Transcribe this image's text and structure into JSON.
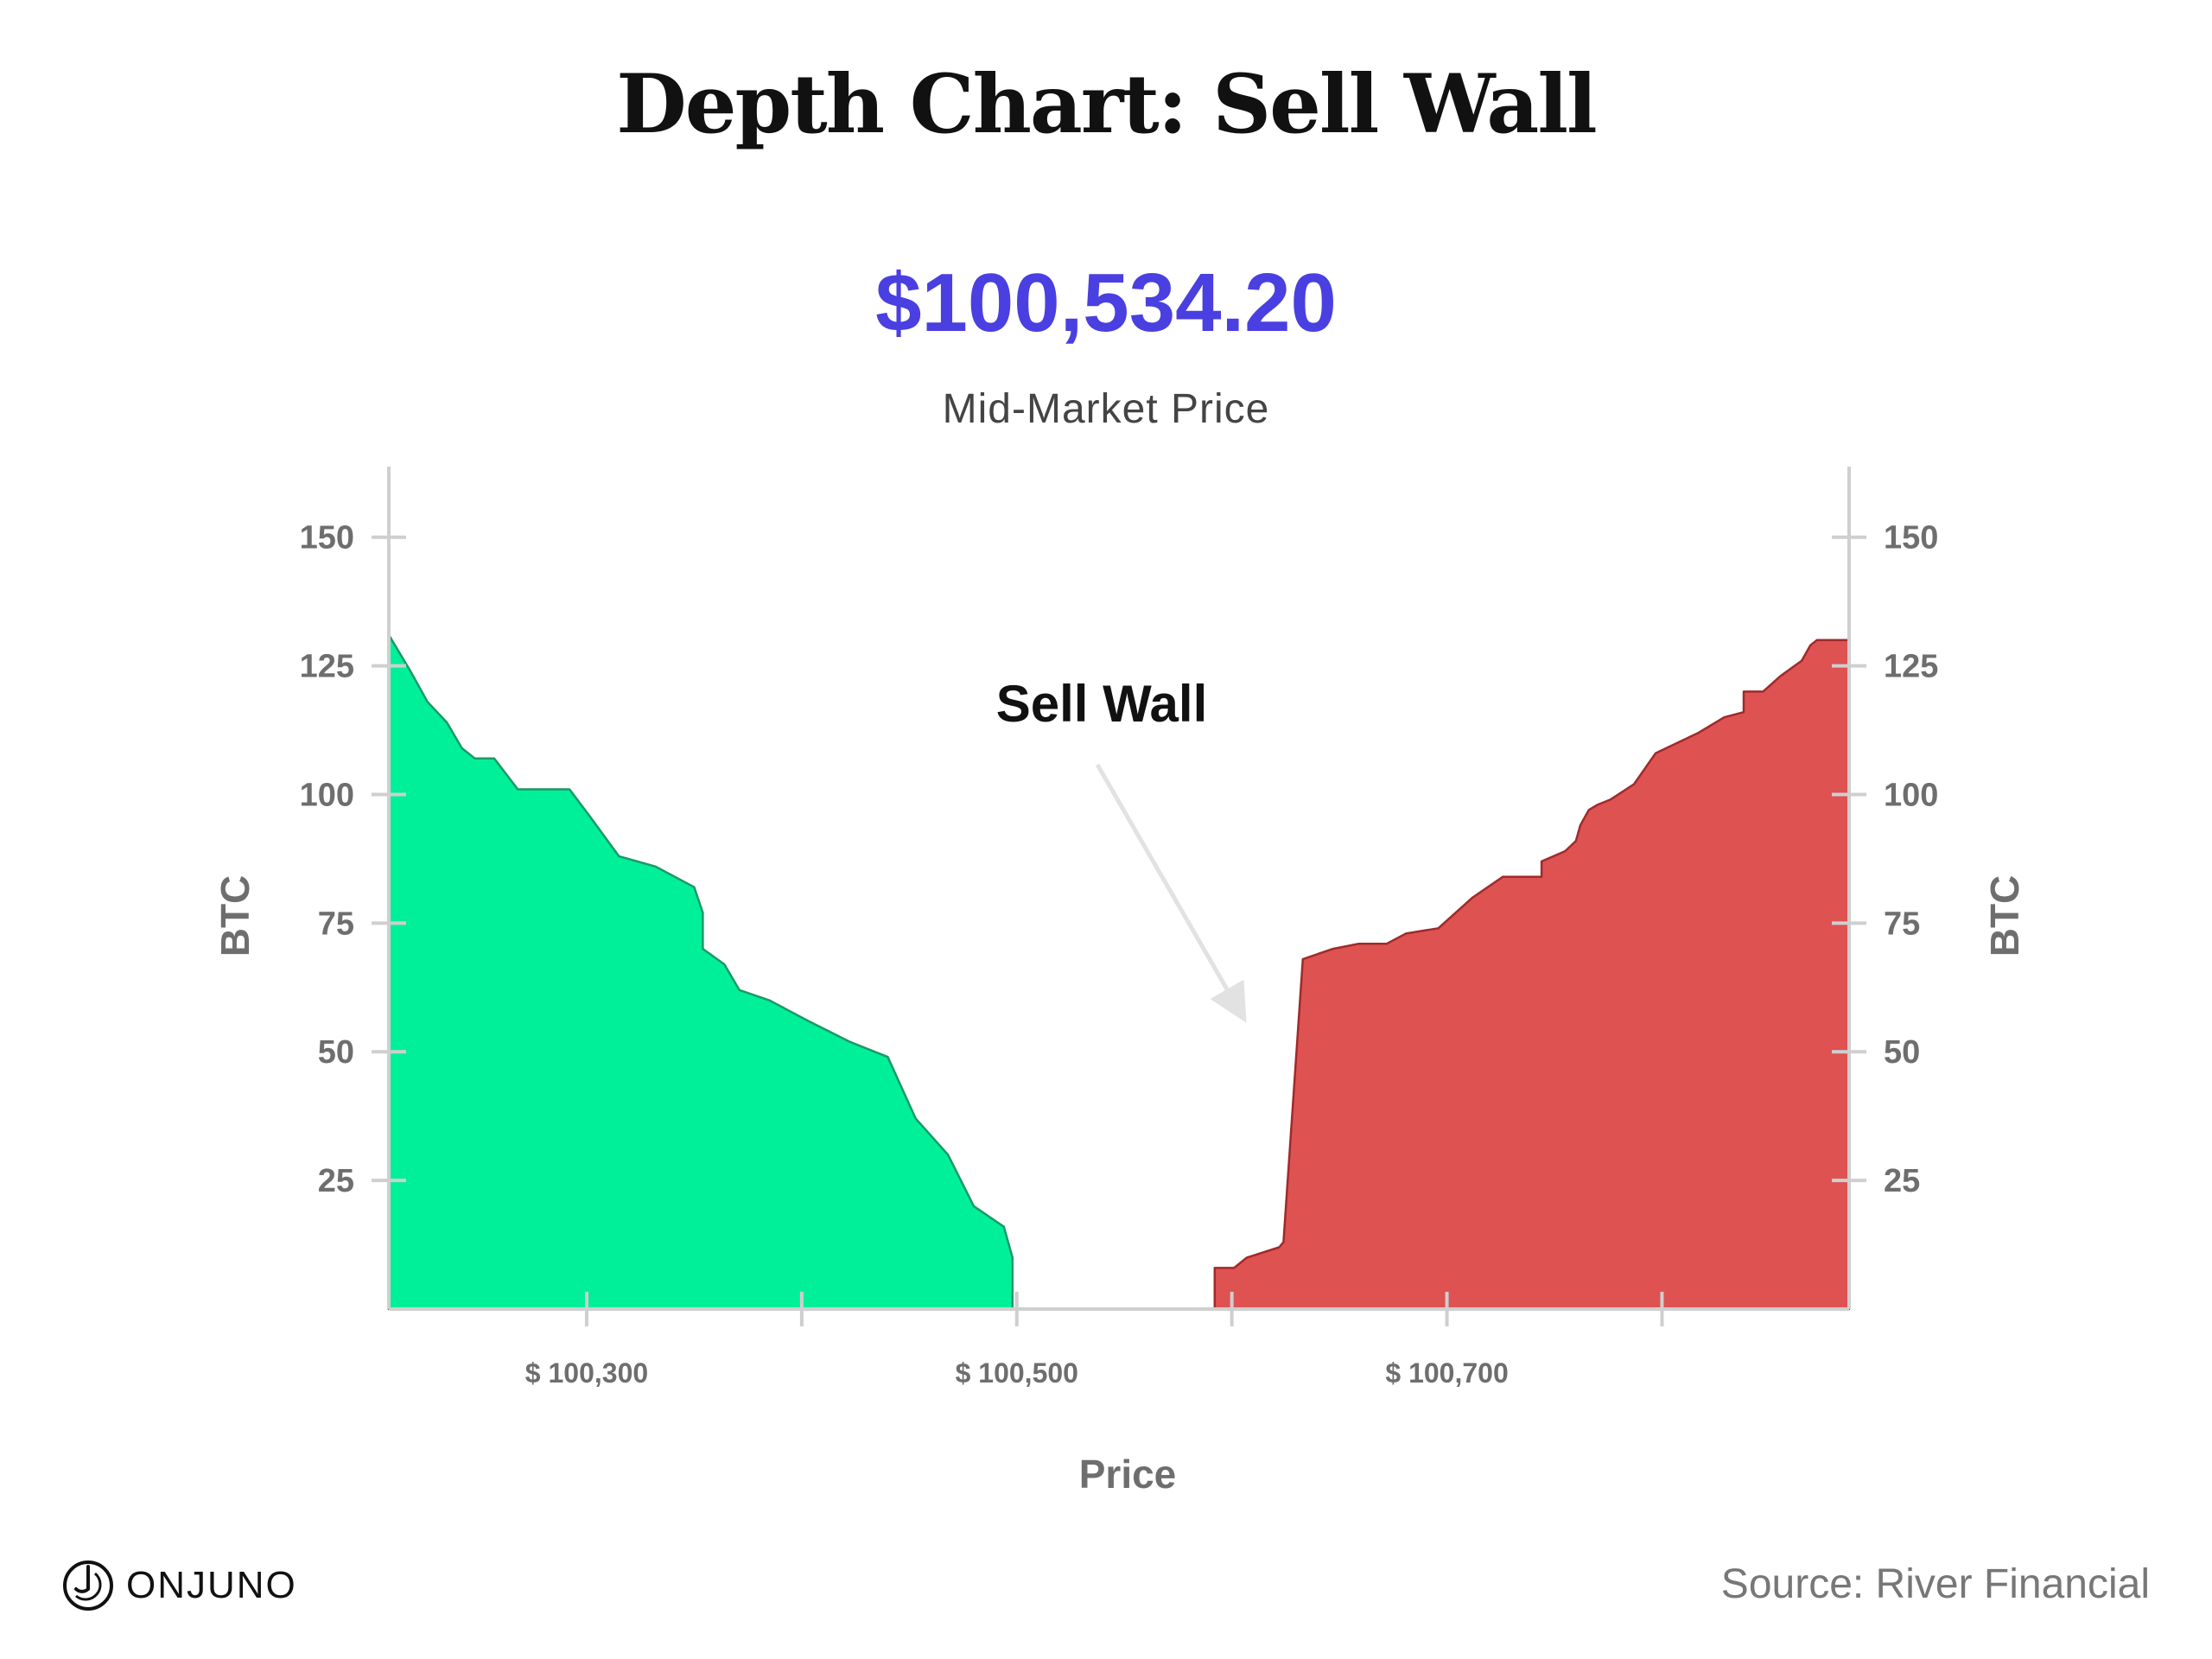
{
  "header": {
    "title": "Depth Chart: Sell Wall",
    "mid_price": "$100,534.20",
    "mid_price_label": "Mid-Market Price"
  },
  "footer": {
    "brand": "ONJUNO",
    "source": "Source: River Financial"
  },
  "colors": {
    "bids": "#00f09a",
    "bids_stroke": "#1a9a66",
    "asks": "#de5252",
    "asks_stroke": "#a02a2a",
    "axis": "#cfcfcf",
    "tick_text": "#6e6e6e",
    "price_accent": "#4a3fe0"
  },
  "chart_data": {
    "type": "area",
    "xlabel": "Price",
    "ylabel_left": "BTC",
    "ylabel_right": "BTC",
    "xlim": [
      100208,
      100887
    ],
    "ylim": [
      0,
      157
    ],
    "x_ticks": [
      100300,
      100400,
      100500,
      100600,
      100700,
      100800
    ],
    "x_tick_labels": [
      {
        "value": 100300,
        "label": "$ 100,300"
      },
      {
        "value": 100500,
        "label": "$ 100,500"
      },
      {
        "value": 100700,
        "label": "$ 100,700"
      }
    ],
    "y_ticks": [
      {
        "value": 25,
        "label": "25"
      },
      {
        "value": 50,
        "label": "50"
      },
      {
        "value": 75,
        "label": "75"
      },
      {
        "value": 100,
        "label": "100"
      },
      {
        "value": 125,
        "label": "125"
      },
      {
        "value": 150,
        "label": "150"
      }
    ],
    "annotation": {
      "text": "Sell Wall",
      "x": 100600,
      "y": 60
    },
    "series": [
      {
        "side": "bids",
        "points": [
          [
            100208,
            131
          ],
          [
            100218,
            124
          ],
          [
            100226,
            118
          ],
          [
            100235,
            114
          ],
          [
            100242,
            109
          ],
          [
            100248,
            107
          ],
          [
            100257,
            107
          ],
          [
            100268,
            101
          ],
          [
            100292,
            101
          ],
          [
            100301,
            96
          ],
          [
            100315,
            88
          ],
          [
            100332,
            86
          ],
          [
            100350,
            82
          ],
          [
            100354,
            77
          ],
          [
            100354,
            70
          ],
          [
            100364,
            67
          ],
          [
            100371,
            62
          ],
          [
            100385,
            60
          ],
          [
            100403,
            56
          ],
          [
            100422,
            52
          ],
          [
            100440,
            49
          ],
          [
            100453,
            37
          ],
          [
            100468,
            30
          ],
          [
            100480,
            20
          ],
          [
            100494,
            16
          ],
          [
            100498,
            10
          ],
          [
            100498,
            0
          ]
        ]
      },
      {
        "side": "asks",
        "points": [
          [
            100592,
            0
          ],
          [
            100592,
            8
          ],
          [
            100601,
            8
          ],
          [
            100607,
            10
          ],
          [
            100622,
            12
          ],
          [
            100624,
            13
          ],
          [
            100633,
            68
          ],
          [
            100647,
            70
          ],
          [
            100659,
            71
          ],
          [
            100672,
            71
          ],
          [
            100681,
            73
          ],
          [
            100696,
            74
          ],
          [
            100712,
            80
          ],
          [
            100726,
            84
          ],
          [
            100744,
            84
          ],
          [
            100744,
            87
          ],
          [
            100755,
            89
          ],
          [
            100760,
            91
          ],
          [
            100762,
            94
          ],
          [
            100766,
            97
          ],
          [
            100770,
            98
          ],
          [
            100776,
            99
          ],
          [
            100787,
            102
          ],
          [
            100797,
            108
          ],
          [
            100817,
            112
          ],
          [
            100829,
            115
          ],
          [
            100838,
            116
          ],
          [
            100838,
            120
          ],
          [
            100847,
            120
          ],
          [
            100855,
            123
          ],
          [
            100865,
            126
          ],
          [
            100869,
            129
          ],
          [
            100872,
            130
          ],
          [
            100887,
            130
          ],
          [
            100887,
            0
          ]
        ]
      }
    ]
  }
}
